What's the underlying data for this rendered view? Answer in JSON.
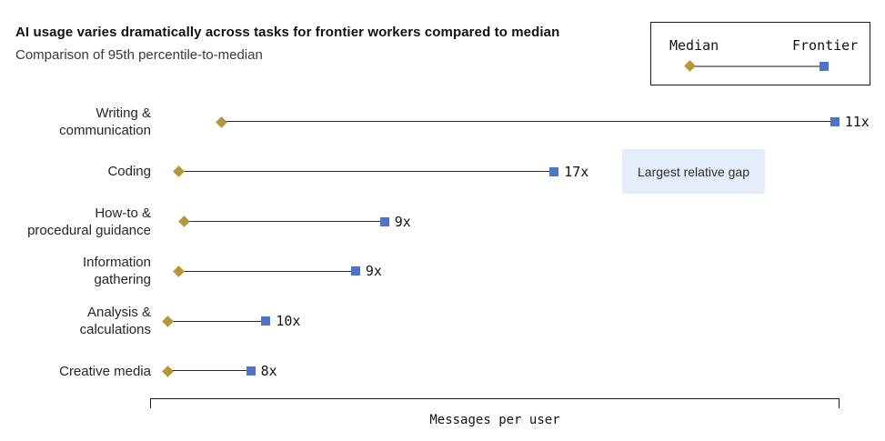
{
  "chart_data": {
    "type": "dumbbell",
    "title": "AI usage varies dramatically across tasks for frontier workers compared to median",
    "subtitle": "Comparison of 95th percentile-to-median",
    "xlabel": "Messages per user",
    "legend": {
      "median_label": "Median",
      "frontier_label": "Frontier",
      "position": "top-right"
    },
    "annotation": "Largest relative gap",
    "axis_note": "no numeric tick labels shown; positions are fractions of axis length",
    "rows": [
      {
        "category": "Writing & communication",
        "label_lines": [
          "Writing &",
          "communication"
        ],
        "ratio_label": "11x",
        "median_pos": 0.103,
        "frontier_pos": 0.993
      },
      {
        "category": "Coding",
        "label_lines": [
          "Coding"
        ],
        "ratio_label": "17x",
        "median_pos": 0.041,
        "frontier_pos": 0.586
      },
      {
        "category": "How-to & procedural guidance",
        "label_lines": [
          "How-to &",
          "procedural guidance"
        ],
        "ratio_label": "9x",
        "median_pos": 0.049,
        "frontier_pos": 0.34
      },
      {
        "category": "Information gathering",
        "label_lines": [
          "Information",
          "gathering"
        ],
        "ratio_label": "9x",
        "median_pos": 0.041,
        "frontier_pos": 0.298
      },
      {
        "category": "Analysis & calculations",
        "label_lines": [
          "Analysis &",
          "calculations"
        ],
        "ratio_label": "10x",
        "median_pos": 0.026,
        "frontier_pos": 0.168
      },
      {
        "category": "Creative media",
        "label_lines": [
          "Creative media"
        ],
        "ratio_label": "8x",
        "median_pos": 0.026,
        "frontier_pos": 0.146
      }
    ],
    "colors": {
      "median_marker": "#b2983a",
      "frontier_marker": "#4d74c8",
      "connector_line": "#2b2b2b",
      "annotation_bg": "#e5ecfa"
    }
  }
}
